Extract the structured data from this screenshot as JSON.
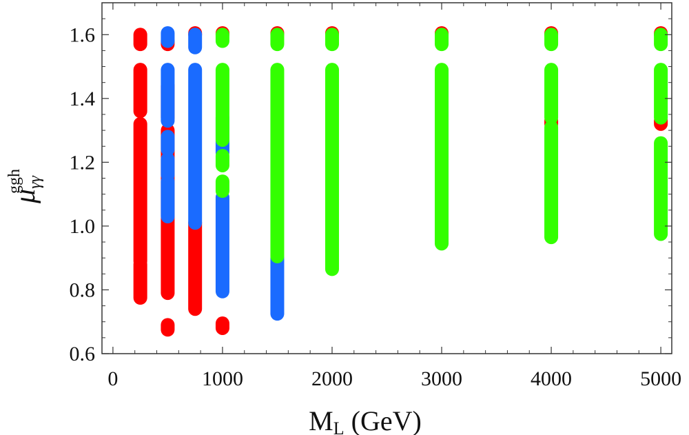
{
  "chart_data": {
    "type": "scatter",
    "title": "",
    "xlabel": "M",
    "xlabel_subscript": "L",
    "xlabel_unit": "(GeV)",
    "ylabel": "μ",
    "ylabel_subscript": "γγ",
    "ylabel_superscript": "ggh",
    "xlim": [
      -100,
      5100
    ],
    "ylim": [
      0.6,
      1.7
    ],
    "x_ticks": [
      0,
      1000,
      2000,
      3000,
      4000,
      5000
    ],
    "x_tick_labels": [
      "0",
      "1000",
      "2000",
      "3000",
      "4000",
      "5000"
    ],
    "y_ticks": [
      0.6,
      0.8,
      1.0,
      1.2,
      1.4,
      1.6
    ],
    "y_tick_labels": [
      "0.6",
      "0.8",
      "1.0",
      "1.2",
      "1.4",
      "1.6"
    ],
    "legend": "none",
    "grid": false,
    "colors": {
      "red": "#ff0000",
      "blue": "#1a6bff",
      "green": "#33ff00"
    },
    "series": [
      {
        "name": "red",
        "color_key": "red",
        "columns": [
          {
            "x": 250,
            "ranges": [
              [
                0.775,
                0.88
              ],
              [
                0.89,
                1.32
              ],
              [
                1.36,
                1.49
              ],
              [
                1.57,
                1.6
              ]
            ]
          },
          {
            "x": 500,
            "ranges": [
              [
                0.675,
                0.69
              ],
              [
                0.79,
                1.3
              ],
              [
                1.34,
                1.44
              ],
              [
                1.57,
                1.58
              ]
            ]
          },
          {
            "x": 750,
            "ranges": [
              [
                0.74,
                1.01
              ],
              [
                1.6,
                1.605
              ]
            ]
          },
          {
            "x": 1000,
            "ranges": [
              [
                0.68,
                0.695
              ],
              [
                1.6,
                1.605
              ]
            ]
          },
          {
            "x": 1500,
            "ranges": [
              [
                1.6,
                1.605
              ]
            ]
          },
          {
            "x": 2000,
            "ranges": [
              [
                1.6,
                1.605
              ]
            ]
          },
          {
            "x": 3000,
            "ranges": [
              [
                1.6,
                1.605
              ]
            ]
          },
          {
            "x": 4000,
            "ranges": [
              [
                1.32,
                1.33
              ],
              [
                1.6,
                1.605
              ]
            ]
          },
          {
            "x": 5000,
            "ranges": [
              [
                1.32,
                1.33
              ],
              [
                1.6,
                1.605
              ]
            ]
          }
        ]
      },
      {
        "name": "blue",
        "color_key": "blue",
        "columns": [
          {
            "x": 500,
            "ranges": [
              [
                1.03,
                1.14
              ],
              [
                1.16,
                1.21
              ],
              [
                1.24,
                1.28
              ],
              [
                1.33,
                1.49
              ],
              [
                1.58,
                1.605
              ]
            ]
          },
          {
            "x": 750,
            "ranges": [
              [
                1.01,
                1.49
              ],
              [
                1.56,
                1.6
              ]
            ]
          },
          {
            "x": 1000,
            "ranges": [
              [
                0.795,
                1.09
              ],
              [
                1.23,
                1.34
              ]
            ]
          },
          {
            "x": 1500,
            "ranges": [
              [
                0.725,
                0.9
              ]
            ]
          }
        ]
      },
      {
        "name": "green",
        "color_key": "green",
        "columns": [
          {
            "x": 1000,
            "ranges": [
              [
                1.11,
                1.14
              ],
              [
                1.19,
                1.22
              ],
              [
                1.27,
                1.49
              ],
              [
                1.58,
                1.6
              ]
            ]
          },
          {
            "x": 1500,
            "ranges": [
              [
                0.905,
                1.49
              ],
              [
                1.57,
                1.6
              ]
            ]
          },
          {
            "x": 2000,
            "ranges": [
              [
                0.865,
                1.49
              ],
              [
                1.57,
                1.6
              ]
            ]
          },
          {
            "x": 3000,
            "ranges": [
              [
                0.945,
                1.49
              ],
              [
                1.57,
                1.6
              ]
            ]
          },
          {
            "x": 4000,
            "ranges": [
              [
                0.965,
                1.31
              ],
              [
                1.34,
                1.49
              ],
              [
                1.57,
                1.6
              ]
            ]
          },
          {
            "x": 5000,
            "ranges": [
              [
                0.975,
                1.26
              ],
              [
                1.34,
                1.49
              ],
              [
                1.57,
                1.6
              ]
            ]
          }
        ]
      }
    ]
  }
}
